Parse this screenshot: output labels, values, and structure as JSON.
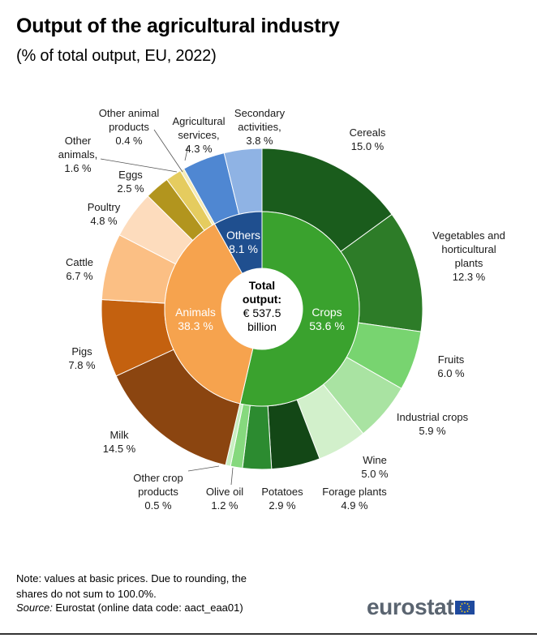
{
  "header": {
    "title": "Output of the agricultural industry",
    "subtitle": "(% of total output, EU, 2022)"
  },
  "chart_data": {
    "type": "pie",
    "title": "Output of the agricultural industry",
    "subtitle": "(% of total output, EU, 2022)",
    "center_label": [
      "Total",
      "output:",
      "€ 537.5",
      "billion"
    ],
    "inner_ring": [
      {
        "name": "Crops",
        "value": 53.6,
        "label": "53.6 %",
        "color": "#3aa22e"
      },
      {
        "name": "Animals",
        "value": 38.3,
        "label": "38.3 %",
        "color": "#f6a34e"
      },
      {
        "name": "Others",
        "value": 8.1,
        "label": "8.1 %",
        "color": "#1f4f8f"
      }
    ],
    "outer_ring": [
      {
        "name": "Cereals",
        "value": 15.0,
        "label": "15.0 %",
        "color": "#1a5c1c",
        "group": "Crops"
      },
      {
        "name": "Vegetables and horticultural plants",
        "value": 12.3,
        "label": "12.3 %",
        "color": "#2d7c28",
        "group": "Crops"
      },
      {
        "name": "Fruits",
        "value": 6.0,
        "label": "6.0 %",
        "color": "#78d470",
        "group": "Crops"
      },
      {
        "name": "Industrial crops",
        "value": 5.9,
        "label": "5.9 %",
        "color": "#a9e3a2",
        "group": "Crops"
      },
      {
        "name": "Wine",
        "value": 5.0,
        "label": "5.0 %",
        "color": "#d2f0cb",
        "group": "Crops"
      },
      {
        "name": "Forage plants",
        "value": 4.9,
        "label": "4.9 %",
        "color": "#134716",
        "group": "Crops"
      },
      {
        "name": "Potatoes",
        "value": 2.9,
        "label": "2.9 %",
        "color": "#2c8b30",
        "group": "Crops"
      },
      {
        "name": "Olive oil",
        "value": 1.2,
        "label": "1.2 %",
        "color": "#86d97e",
        "group": "Crops"
      },
      {
        "name": "Other crop products",
        "value": 0.5,
        "label": "0.5 %",
        "color": "#c8efc2",
        "group": "Crops"
      },
      {
        "name": "Milk",
        "value": 14.5,
        "label": "14.5 %",
        "color": "#8b4510",
        "group": "Animals"
      },
      {
        "name": "Pigs",
        "value": 7.8,
        "label": "7.8 %",
        "color": "#c4610f",
        "group": "Animals"
      },
      {
        "name": "Cattle",
        "value": 6.7,
        "label": "6.7 %",
        "color": "#fbbf84",
        "group": "Animals"
      },
      {
        "name": "Poultry",
        "value": 4.8,
        "label": "4.8 %",
        "color": "#fddcbd",
        "group": "Animals"
      },
      {
        "name": "Eggs",
        "value": 2.5,
        "label": "2.5 %",
        "color": "#b2951e",
        "group": "Animals"
      },
      {
        "name": "Other animals",
        "value": 1.6,
        "label": "1.6 %",
        "color": "#e5cc5f",
        "group": "Animals"
      },
      {
        "name": "Other animal products",
        "value": 0.4,
        "label": "0.4 %",
        "color": "#f5ebb6",
        "group": "Animals"
      },
      {
        "name": "Agricultural services",
        "value": 4.3,
        "label": "4.3 %",
        "color": "#4f87d2",
        "group": "Others"
      },
      {
        "name": "Secondary activities",
        "value": 3.8,
        "label": "3.8 %",
        "color": "#8fb3e4",
        "group": "Others"
      }
    ]
  },
  "footer": {
    "note_line1": "Note: values at basic prices. Due to rounding, the",
    "note_line2": "shares do not sum to 100.0%.",
    "source_prefix": "Source:",
    "source_text": " Eurostat (online data code: aact_eaa01)",
    "brand": "eurostat"
  }
}
